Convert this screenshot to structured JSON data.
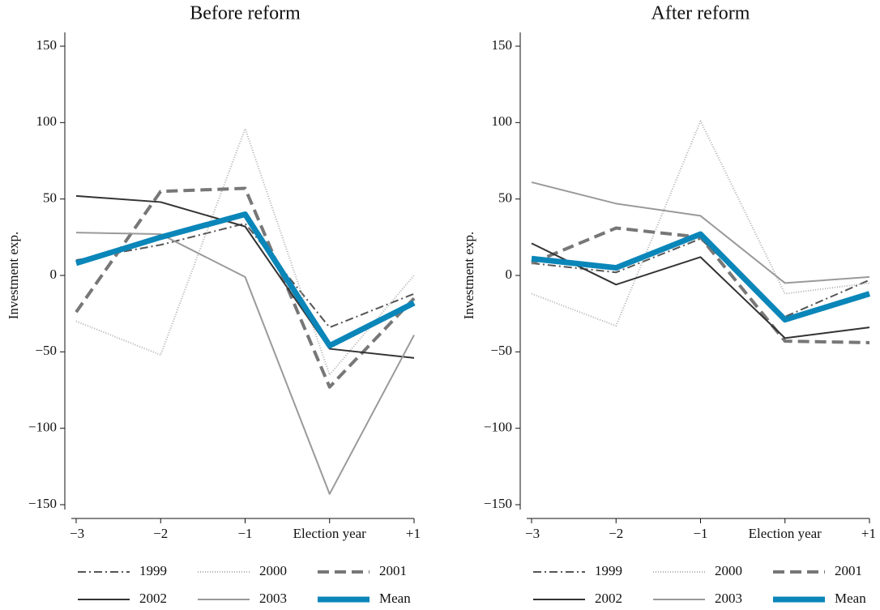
{
  "chart_data": [
    {
      "type": "line",
      "title": "Before reform",
      "y_label": "Investment exp.",
      "categories": [
        "−3",
        "−2",
        "−1",
        "Election year",
        "+1"
      ],
      "ylim": [
        -150,
        150
      ],
      "yticks": [
        {
          "value": -150,
          "label": "−150"
        },
        {
          "value": -100,
          "label": "−100"
        },
        {
          "value": -50,
          "label": "−50"
        },
        0,
        50,
        100,
        150
      ],
      "series": [
        {
          "name": "1999",
          "color": "#555555",
          "dash": "10,4,2,4",
          "width": 2,
          "values": [
            10,
            20,
            34,
            -34,
            -12
          ]
        },
        {
          "name": "2000",
          "color": "#b0b0b0",
          "dash": "1,2",
          "width": 2,
          "values": [
            -30,
            -52,
            96,
            -65,
            0
          ]
        },
        {
          "name": "2001",
          "color": "#777777",
          "dash": "14,7",
          "width": 4,
          "values": [
            -24,
            55,
            57,
            -73,
            -15
          ]
        },
        {
          "name": "2002",
          "color": "#333333",
          "dash": "",
          "width": 2,
          "values": [
            52,
            48,
            32,
            -48,
            -54
          ]
        },
        {
          "name": "2003",
          "color": "#9a9a9a",
          "dash": "",
          "width": 2,
          "values": [
            28,
            27,
            -1,
            -143,
            -39
          ]
        },
        {
          "name": "Mean",
          "color": "#0a86b9",
          "dash": "",
          "width": 7,
          "values": [
            8,
            25,
            40,
            -46,
            -18
          ]
        }
      ]
    },
    {
      "type": "line",
      "title": "After reform",
      "y_label": "Investment exp.",
      "categories": [
        "−3",
        "−2",
        "−1",
        "Election year",
        "+1"
      ],
      "ylim": [
        -150,
        150
      ],
      "yticks": [
        {
          "value": -150,
          "label": "−150"
        },
        {
          "value": -100,
          "label": "−100"
        },
        {
          "value": -50,
          "label": "−50"
        },
        0,
        50,
        100,
        150
      ],
      "series": [
        {
          "name": "1999",
          "color": "#555555",
          "dash": "10,4,2,4",
          "width": 2,
          "values": [
            8,
            2,
            24,
            -27,
            -3
          ]
        },
        {
          "name": "2000",
          "color": "#b0b0b0",
          "dash": "1,2",
          "width": 2,
          "values": [
            -12,
            -33,
            101,
            -12,
            -5
          ]
        },
        {
          "name": "2001",
          "color": "#777777",
          "dash": "14,7",
          "width": 4,
          "values": [
            8,
            31,
            25,
            -43,
            -44
          ]
        },
        {
          "name": "2002",
          "color": "#333333",
          "dash": "",
          "width": 2,
          "values": [
            21,
            -6,
            12,
            -41,
            -34
          ]
        },
        {
          "name": "2003",
          "color": "#9a9a9a",
          "dash": "",
          "width": 2,
          "values": [
            61,
            47,
            39,
            -5,
            -1
          ]
        },
        {
          "name": "Mean",
          "color": "#0a86b9",
          "dash": "",
          "width": 7,
          "values": [
            11,
            5,
            27,
            -29,
            -12
          ]
        }
      ]
    }
  ]
}
